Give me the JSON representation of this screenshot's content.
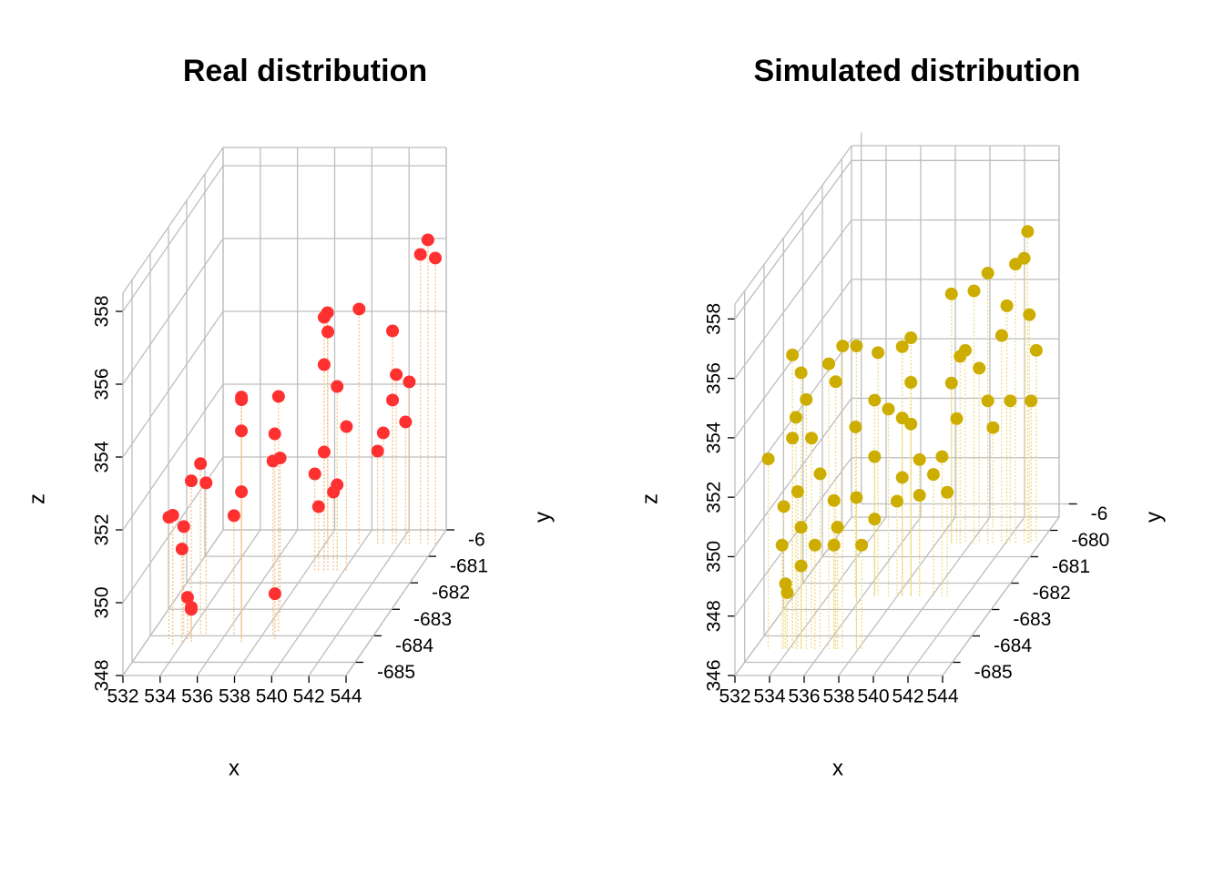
{
  "chart_data": [
    {
      "type": "scatter3d",
      "title": "Real distribution",
      "xlabel": "x",
      "ylabel": "y",
      "zlabel": "z",
      "color": "#ff3030",
      "drop_color": "#f2c38a",
      "grid": true,
      "xlim": [
        532,
        544
      ],
      "ylim": [
        -685.5,
        -680
      ],
      "zlim": [
        348,
        358.5
      ],
      "xticks": [
        532,
        534,
        536,
        538,
        540,
        542,
        544
      ],
      "yticks": [
        -685,
        -684,
        -683,
        -682,
        -681,
        {
          "value": -680,
          "label": "-6"
        }
      ],
      "zticks": [
        348,
        350,
        352,
        354,
        356,
        358
      ],
      "x": [
        533.2,
        533.8,
        534.0,
        534.2,
        534.3,
        534.4,
        534.8,
        535.0,
        533.6,
        534.5,
        537.1,
        537.2,
        537.0,
        537.1,
        536.5,
        538.8,
        538.5,
        538.6,
        538.9,
        538.2,
        539.0,
        539.2,
        539.0,
        539.7,
        540.2,
        539.0,
        538.5,
        539.5,
        538.7,
        539.7,
        539.9,
        541.7,
        541.9,
        541.7,
        542.4,
        541.2,
        542.6,
        543.6,
        544.0,
        543.2,
        540.9,
        538.2
      ],
      "y": [
        -684.2,
        -684.0,
        -684.3,
        -684.2,
        -684.1,
        -684.2,
        -684.1,
        -684.0,
        -684.4,
        -684.3,
        -684.2,
        -684.3,
        -684.1,
        -684.2,
        -684.0,
        -683.9,
        -683.8,
        -684.0,
        -684.2,
        -683.2,
        -681.6,
        -681.6,
        -681.6,
        -681.6,
        -681.6,
        -681.6,
        -681.6,
        -681.6,
        -681.6,
        -681.6,
        -680.6,
        -680.6,
        -680.6,
        -680.6,
        -680.6,
        -680.6,
        -680.6,
        -680.6,
        -680.6,
        -680.6,
        -680.6,
        -680.6
      ],
      "z": [
        351.4,
        351.0,
        350.6,
        349.2,
        348.8,
        352.4,
        352.8,
        352.2,
        351.6,
        349.0,
        354.7,
        354.7,
        353.7,
        352.1,
        351.3,
        354.5,
        353.4,
        352.8,
        349.3,
        352.3,
        355.0,
        354.6,
        353.7,
        353.1,
        352.0,
        351.3,
        350.7,
        350.2,
        349.8,
        350.4,
        354.5,
        353.9,
        352.7,
        352.0,
        351.4,
        351.1,
        352.5,
        356.4,
        355.9,
        356.0,
        350.6,
        354.4
      ]
    },
    {
      "type": "scatter3d",
      "title": "Simulated distribution",
      "xlabel": "x",
      "ylabel": "y",
      "zlabel": "z",
      "color": "#cdad00",
      "drop_color": "#eedc82",
      "grid": true,
      "xlim": [
        532,
        544
      ],
      "ylim": [
        -685.5,
        -679.5
      ],
      "zlim": [
        346,
        358.5
      ],
      "xticks": [
        532,
        534,
        536,
        538,
        540,
        542,
        544
      ],
      "yticks": [
        -685,
        -684,
        -683,
        -682,
        -681,
        -680,
        {
          "value": -679,
          "label": "-6"
        }
      ],
      "zticks": [
        346,
        348,
        350,
        352,
        354,
        356,
        358
      ],
      "x": [
        532.8,
        533.7,
        533.6,
        533.8,
        533.9,
        534.2,
        534.7,
        535.0,
        534.4,
        535.3,
        535.8,
        535.5,
        534.5,
        534.7,
        536.3,
        536.7,
        537.1,
        537.9,
        536.6,
        536.6,
        536.8,
        538.2,
        537.9,
        534.7,
        534.2,
        536.9,
        538.3,
        538.8,
        536.7,
        537.5,
        538.3,
        538.8,
        536.7,
        538.3,
        539.3,
        540.1,
        540.9,
        536.7,
        538.0,
        540.6,
        539.3,
        538.8,
        535.6,
        538.9,
        540.2,
        541.0,
        542.6,
        543.3,
        543.1,
        542.1,
        543.4,
        543.8,
        541.8,
        540.5,
        541.0,
        543.5,
        542.3,
        539.7,
        538.9,
        539.2,
        541.3,
        539.4
      ],
      "y": [
        -684.5,
        -684.5,
        -684.5,
        -684.5,
        -684.5,
        -684.5,
        -684.5,
        -684.5,
        -684.5,
        -684.5,
        -684.5,
        -684.5,
        -684.5,
        -684.5,
        -684.5,
        -684.5,
        -684.5,
        -684.5,
        -684.5,
        -684.5,
        -684.5,
        -684.5,
        -684.5,
        -684.5,
        -684.5,
        -682.5,
        -682.5,
        -682.5,
        -682.5,
        -682.5,
        -682.5,
        -682.5,
        -682.5,
        -682.5,
        -682.5,
        -682.5,
        -682.5,
        -682.5,
        -682.5,
        -682.5,
        -682.5,
        -682.5,
        -682.5,
        -680.5,
        -680.5,
        -680.5,
        -680.5,
        -680.5,
        -680.5,
        -680.5,
        -680.5,
        -680.5,
        -680.5,
        -680.5,
        -680.5,
        -680.5,
        -680.5,
        -680.5,
        -680.5,
        -680.5,
        -680.5,
        -680.5
      ],
      "z": [
        352.4,
        350.8,
        349.5,
        348.2,
        347.9,
        355.9,
        355.3,
        354.4,
        353.8,
        353.1,
        351.9,
        349.5,
        351.3,
        350.1,
        355.6,
        355.0,
        356.2,
        356.2,
        351.0,
        349.5,
        350.1,
        349.5,
        351.1,
        348.8,
        353.1,
        354.2,
        354.4,
        354.7,
        352.6,
        352.3,
        352.0,
        351.8,
        350.7,
        350.0,
        349.4,
        350.1,
        349.5,
        348.6,
        349.2,
        350.7,
        350.6,
        353.2,
        351.7,
        354.4,
        354.5,
        355.1,
        355.4,
        356.5,
        355.6,
        354.0,
        353.7,
        352.5,
        353.0,
        351.9,
        350.8,
        350.8,
        350.8,
        352.5,
        351.4,
        350.2,
        349.9,
        352.3
      ]
    }
  ]
}
